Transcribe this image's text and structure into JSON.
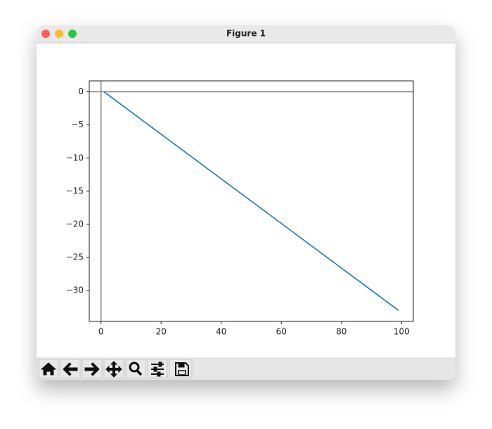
{
  "window": {
    "title": "Figure 1"
  },
  "chart_data": {
    "type": "line",
    "x": [
      1,
      99
    ],
    "values": [
      0,
      -33
    ],
    "color": "#1f77b4",
    "axhline": 0,
    "axvline": 0,
    "ref_color": "#808080",
    "xlim": [
      -3.9,
      103.9
    ],
    "xticks": [
      0,
      20,
      40,
      60,
      80,
      100
    ],
    "ylim": [
      -34.65,
      1.65
    ],
    "yticks": [
      {
        "value": 0,
        "label": "0"
      },
      {
        "value": -5,
        "label": "−5"
      },
      {
        "value": -10,
        "label": "−10"
      },
      {
        "value": -15,
        "label": "−15"
      },
      {
        "value": -20,
        "label": "−20"
      },
      {
        "value": -25,
        "label": "−25"
      },
      {
        "value": -30,
        "label": "−30"
      }
    ],
    "grid": false
  }
}
